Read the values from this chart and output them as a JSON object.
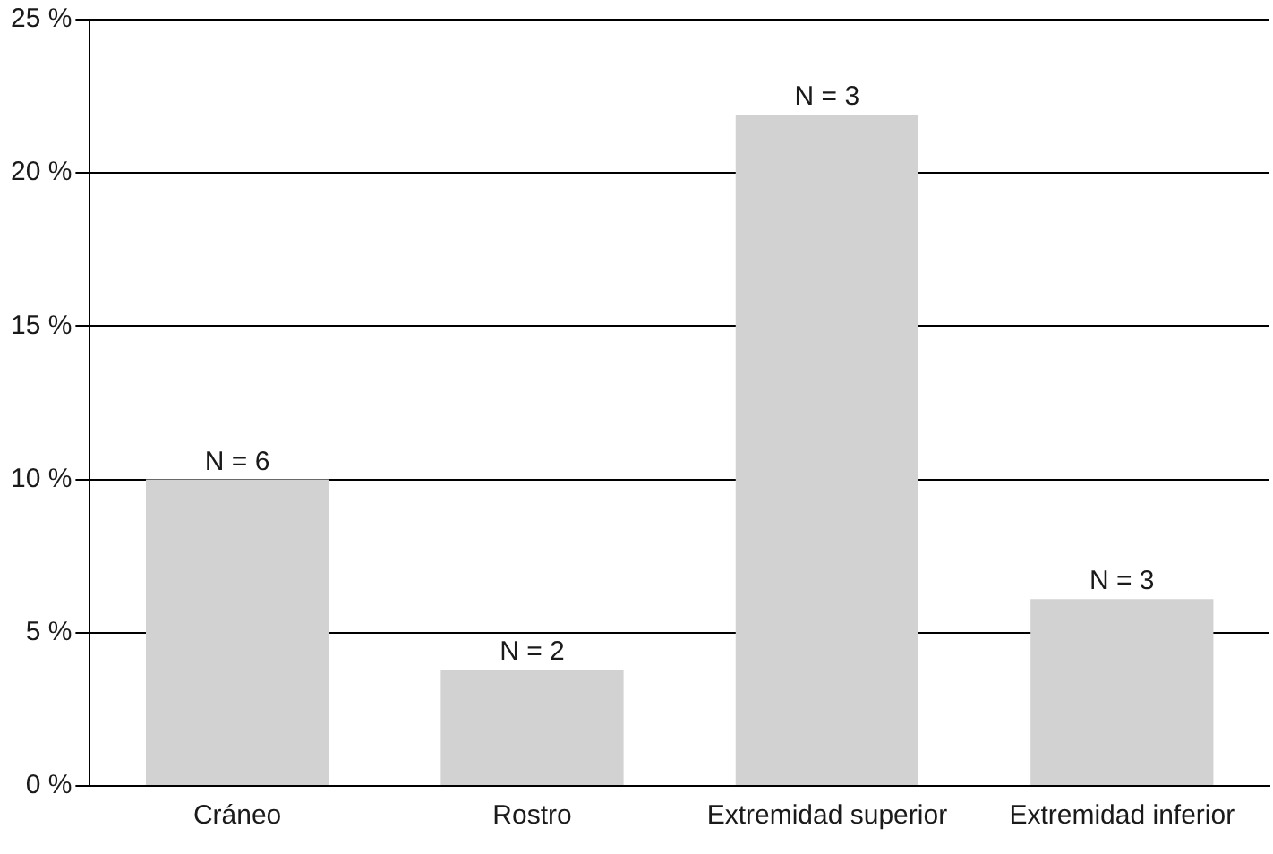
{
  "chart_data": {
    "type": "bar",
    "categories": [
      "Cráneo",
      "Rostro",
      "Extremidad superior",
      "Extremidad inferior"
    ],
    "values": [
      10,
      3.8,
      21.9,
      6.1
    ],
    "color": "#d2d2d2",
    "ylim": [
      0,
      25
    ],
    "yticks": [
      {
        "value": 0,
        "label": "0 %"
      },
      {
        "value": 5,
        "label": "5 %"
      },
      {
        "value": 10,
        "label": "10 %"
      },
      {
        "value": 15,
        "label": "15 %"
      },
      {
        "value": 20,
        "label": "20 %"
      },
      {
        "value": 25,
        "label": "25 %"
      }
    ],
    "grid": "y",
    "legend": false,
    "annotations": [
      {
        "text": "N = 6",
        "x": "Cráneo",
        "y": 10
      },
      {
        "text": "N = 2",
        "x": "Rostro",
        "y": 3.8
      },
      {
        "text": "N = 3",
        "x": "Extremidad superior",
        "y": 21.9
      },
      {
        "text": "N = 3",
        "x": "Extremidad inferior",
        "y": 6.1
      }
    ]
  }
}
